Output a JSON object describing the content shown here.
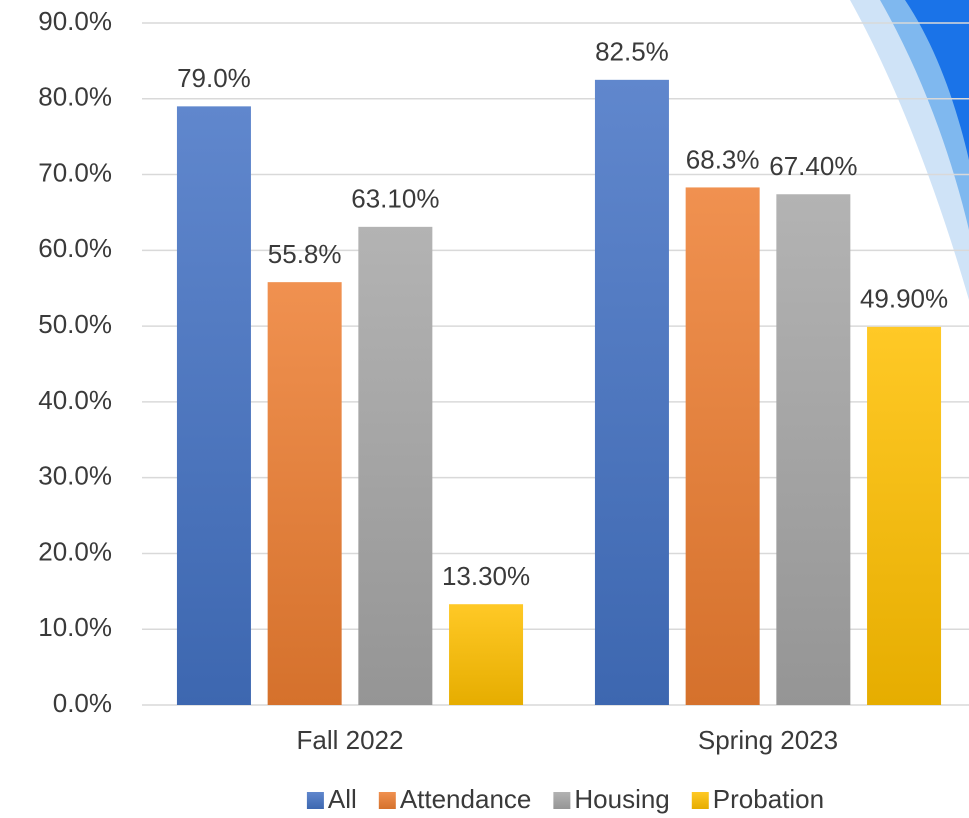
{
  "chart_data": {
    "type": "bar",
    "categories": [
      "Fall 2022",
      "Spring 2023"
    ],
    "series": [
      {
        "name": "All",
        "color": "#4472c4",
        "values": [
          79.0,
          82.5
        ],
        "value_labels": [
          "79.0%",
          "82.5%"
        ]
      },
      {
        "name": "Attendance",
        "color": "#ed7d31",
        "values": [
          55.8,
          68.3
        ],
        "value_labels": [
          "55.8%",
          "68.3%"
        ]
      },
      {
        "name": "Housing",
        "color": "#a5a5a5",
        "values": [
          63.1,
          67.4
        ],
        "value_labels": [
          "63.10%",
          "67.40%"
        ]
      },
      {
        "name": "Probation",
        "color": "#ffc000",
        "values": [
          13.3,
          49.9
        ],
        "value_labels": [
          "13.30%",
          "49.90%"
        ]
      }
    ],
    "ylim": [
      0,
      90
    ],
    "yticks": [
      {
        "value": 0,
        "label": "0.0%"
      },
      {
        "value": 10,
        "label": "10.0%"
      },
      {
        "value": 20,
        "label": "20.0%"
      },
      {
        "value": 30,
        "label": "30.0%"
      },
      {
        "value": 40,
        "label": "40.0%"
      },
      {
        "value": 50,
        "label": "50.0%"
      },
      {
        "value": 60,
        "label": "60.0%"
      },
      {
        "value": 70,
        "label": "70.0%"
      },
      {
        "value": 80,
        "label": "80.0%"
      },
      {
        "value": 90,
        "label": "90.0%"
      }
    ],
    "grid": true,
    "legend": "bottom"
  }
}
